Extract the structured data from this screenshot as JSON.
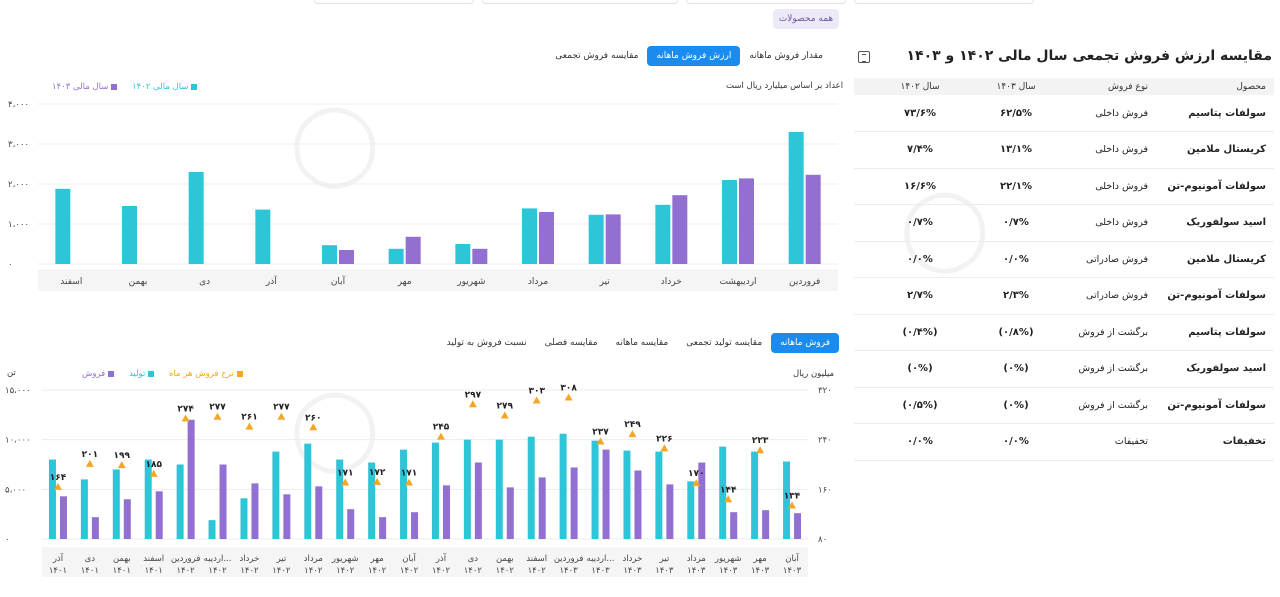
{
  "top_pill": "همه محصولات",
  "table": {
    "title": "مقایسه ارزش فروش تجمعی سال مالی ۱۴۰۲ و ۱۴۰۳",
    "headers": [
      "محصول",
      "نوع فروش",
      "سال ۱۴۰۳",
      "سال ۱۴۰۲"
    ],
    "rows": [
      [
        "سولفات پتاسیم",
        "فروش داخلی",
        "۶۲/۵%",
        "۷۳/۶%"
      ],
      [
        "کریستال ملامین",
        "فروش داخلی",
        "۱۳/۱%",
        "۷/۴%"
      ],
      [
        "سولفات آمونیوم-تن",
        "فروش داخلی",
        "۲۲/۱%",
        "۱۶/۶%"
      ],
      [
        "اسید سولفوریک",
        "فروش داخلی",
        "۰/۷%",
        "۰/۷%"
      ],
      [
        "کریستال ملامین",
        "فروش صادراتی",
        "۰/۰%",
        "۰/۰%"
      ],
      [
        "سولفات آمونیوم-تن",
        "فروش صادراتی",
        "۲/۳%",
        "۲/۷%"
      ],
      [
        "سولفات پتاسیم",
        "برگشت از فروش",
        "(۰/۸%)",
        "(۰/۴%)"
      ],
      [
        "اسید سولفوریک",
        "برگشت از فروش",
        "(۰%)",
        "(۰%)"
      ],
      [
        "سولفات آمونیوم-تن",
        "برگشت از فروش",
        "(۰%)",
        "(۰/۵%)"
      ],
      [
        "تخفیفات",
        "تخفیفات",
        "۰/۰%",
        "۰/۰%"
      ]
    ]
  },
  "tabs_top": [
    {
      "label": "مقدار فروش ماهانه",
      "active": false
    },
    {
      "label": "ارزش فروش ماهانه",
      "active": true
    },
    {
      "label": "مقایسه فروش تجمعی",
      "active": false
    }
  ],
  "tabs_bottom": [
    {
      "label": "فروش ماهانه",
      "active": true
    },
    {
      "label": "مقایسه تولید تجمعی",
      "active": false
    },
    {
      "label": "مقایسه ماهانه",
      "active": false
    },
    {
      "label": "مقایسه فصلی",
      "active": false
    },
    {
      "label": "نسبت فروش به تولید",
      "active": false
    }
  ],
  "chart_top_note": "اعداد بر اساس میلیارد ریال است",
  "chart_bottom_left_unit": "تن",
  "chart_bottom_right_unit": "میلیون ریال",
  "colors": {
    "cyan": "#2ec5d9",
    "purple": "#9270d1",
    "orange": "#f5a623",
    "accent": "#1a8cf0"
  },
  "chart_data": [
    {
      "type": "bar",
      "legend": [
        {
          "name": "سال مالی ۱۴۰۲",
          "color": "#2ec5d9"
        },
        {
          "name": "سال مالی ۱۴۰۳",
          "color": "#9270d1"
        }
      ],
      "categories": [
        "فروردین",
        "اردیبهشت",
        "خرداد",
        "تیر",
        "مرداد",
        "شهریور",
        "مهر",
        "آبان",
        "آذر",
        "دی",
        "بهمن",
        "اسفند"
      ],
      "series": [
        {
          "name": "سال مالی ۱۴۰۲",
          "values": [
            3300,
            2100,
            1480,
            1230,
            1390,
            500,
            380,
            470,
            1360,
            2300,
            1450,
            1880
          ]
        },
        {
          "name": "سال مالی ۱۴۰۳",
          "values": [
            2230,
            2140,
            1720,
            1240,
            1300,
            380,
            680,
            350,
            null,
            null,
            null,
            null
          ]
        }
      ],
      "yticks": [
        "۴،۰۰۰",
        "۳،۰۰۰",
        "۲،۰۰۰",
        "۱،۰۰۰",
        "۰"
      ],
      "ylim": [
        0,
        4000
      ],
      "grid": true
    },
    {
      "type": "bar+scatter",
      "legend": [
        {
          "name": "فروش",
          "color": "#9270d1"
        },
        {
          "name": "تولید",
          "color": "#2ec5d9"
        },
        {
          "name": "نرخ فروش هر ماه",
          "color": "#f5a623"
        }
      ],
      "categories": [
        [
          "آذر",
          "۱۴۰۱"
        ],
        [
          "دی",
          "۱۴۰۱"
        ],
        [
          "بهمن",
          "۱۴۰۱"
        ],
        [
          "اسفند",
          "۱۴۰۱"
        ],
        [
          "فروردین",
          "۱۴۰۲"
        ],
        [
          "اردیبه...",
          "۱۴۰۲"
        ],
        [
          "خرداد",
          "۱۴۰۲"
        ],
        [
          "تیر",
          "۱۴۰۲"
        ],
        [
          "مرداد",
          "۱۴۰۲"
        ],
        [
          "شهریور",
          "۱۴۰۲"
        ],
        [
          "مهر",
          "۱۴۰۲"
        ],
        [
          "آبان",
          "۱۴۰۲"
        ],
        [
          "آذر",
          "۱۴۰۲"
        ],
        [
          "دی",
          "۱۴۰۲"
        ],
        [
          "بهمن",
          "۱۴۰۲"
        ],
        [
          "اسفند",
          "۱۴۰۲"
        ],
        [
          "فروردین",
          "۱۴۰۳"
        ],
        [
          "اردیبه...",
          "۱۴۰۳"
        ],
        [
          "خرداد",
          "۱۴۰۳"
        ],
        [
          "تیر",
          "۱۴۰۳"
        ],
        [
          "مرداد",
          "۱۴۰۳"
        ],
        [
          "شهریور",
          "۱۴۰۳"
        ],
        [
          "مهر",
          "۱۴۰۳"
        ],
        [
          "آبان",
          "۱۴۰۳"
        ]
      ],
      "production": [
        8000,
        6000,
        7000,
        8000,
        7500,
        1900,
        4100,
        8800,
        9600,
        8000,
        7700,
        9000,
        9700,
        10000,
        10000,
        10300,
        10600,
        9900,
        8900,
        8800,
        5800,
        9300,
        8800,
        7800
      ],
      "sales": [
        4300,
        2200,
        4000,
        4800,
        12000,
        7500,
        5600,
        4500,
        5300,
        3000,
        2200,
        2700,
        5400,
        7700,
        5200,
        6200,
        7200,
        9000,
        6900,
        5500,
        7700,
        2700,
        2900,
        2600
      ],
      "rate": [
        164,
        201,
        199,
        185,
        274,
        277,
        261,
        277,
        260,
        171,
        172,
        171,
        245,
        297,
        279,
        303,
        308,
        237,
        249,
        226,
        170,
        144,
        223,
        134
      ],
      "rate_labels": [
        "۱۶۴",
        "۲۰۱",
        "۱۹۹",
        "۱۸۵",
        "۲۷۴",
        "۲۷۷",
        "۲۶۱",
        "۲۷۷",
        "۲۶۰",
        "۱۷۱",
        "۱۷۲",
        "۱۷۱",
        "۲۴۵",
        "۲۹۷",
        "۲۷۹",
        "۳۰۳",
        "۳۰۸",
        "۲۳۷",
        "۲۴۹",
        "۲۲۶",
        "۱۷۰",
        "۱۴۴",
        "۲۲۳",
        "۱۳۴"
      ],
      "yticks_left": [
        "۱۵،۰۰۰",
        "۱۰،۰۰۰",
        "۵،۰۰۰",
        "۰"
      ],
      "ylim_left": [
        0,
        15000
      ],
      "yticks_right": [
        "۳۲۰",
        "۲۴۰",
        "۱۶۰",
        "۸۰"
      ],
      "ylim_right": [
        80,
        320
      ]
    }
  ]
}
